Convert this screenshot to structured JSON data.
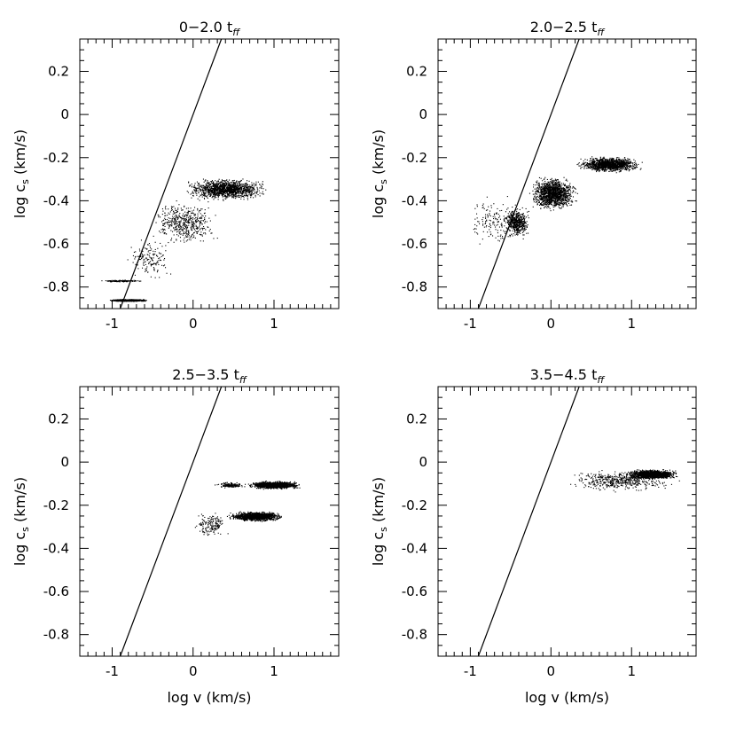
{
  "chart_data": [
    {
      "type": "scatter",
      "title": "0−2.0 t",
      "title_subscript": "ff",
      "xlabel": "",
      "ylabel": "log c",
      "ylabel_subscript": "s",
      "ylabel_unit": " (km/s)",
      "xlim": [
        -1.4,
        1.8
      ],
      "ylim": [
        -0.9,
        0.35
      ],
      "xticks": [
        "-1",
        "0",
        "1"
      ],
      "yticks": [
        "0.2",
        "0",
        "-0.2",
        "-0.4",
        "-0.6",
        "-0.8"
      ],
      "line": {
        "x": [
          -0.9,
          0.35
        ],
        "y": [
          -0.9,
          0.35
        ]
      },
      "clouds": [
        {
          "x": [
            -0.15,
            0.95
          ],
          "y": [
            -0.4,
            -0.29
          ],
          "density": "dense"
        },
        {
          "x": [
            -0.55,
            0.35
          ],
          "y": [
            -0.62,
            -0.38
          ],
          "density": "medium"
        },
        {
          "x": [
            -0.85,
            -0.25
          ],
          "y": [
            -0.78,
            -0.55
          ],
          "density": "sparse"
        },
        {
          "x": [
            -1.05,
            -0.55
          ],
          "y": [
            -0.865,
            -0.855
          ],
          "density": "dense"
        },
        {
          "x": [
            -1.2,
            -0.6
          ],
          "y": [
            -0.775,
            -0.765
          ],
          "density": "sparse"
        }
      ]
    },
    {
      "type": "scatter",
      "title": "2.0−2.5 t",
      "title_subscript": "ff",
      "xlabel": "",
      "ylabel": "log c",
      "ylabel_subscript": "s",
      "ylabel_unit": " (km/s)",
      "xlim": [
        -1.4,
        1.8
      ],
      "ylim": [
        -0.9,
        0.35
      ],
      "xticks": [
        "-1",
        "0",
        "1"
      ],
      "yticks": [
        "0.2",
        "0",
        "-0.2",
        "-0.4",
        "-0.6",
        "-0.8"
      ],
      "line": {
        "x": [
          -0.9,
          0.35
        ],
        "y": [
          -0.9,
          0.35
        ]
      },
      "clouds": [
        {
          "x": [
            0.3,
            1.15
          ],
          "y": [
            -0.27,
            -0.19
          ],
          "density": "dense"
        },
        {
          "x": [
            -0.3,
            0.35
          ],
          "y": [
            -0.45,
            -0.28
          ],
          "density": "dense"
        },
        {
          "x": [
            -0.6,
            -0.25
          ],
          "y": [
            -0.58,
            -0.42
          ],
          "density": "medium"
        },
        {
          "x": [
            -1.1,
            -0.3
          ],
          "y": [
            -0.63,
            -0.36
          ],
          "density": "sparse"
        }
      ]
    },
    {
      "type": "scatter",
      "title": "2.5−3.5 t",
      "title_subscript": "ff",
      "xlabel": "log v (km/s)",
      "ylabel": "log c",
      "ylabel_subscript": "s",
      "ylabel_unit": " (km/s)",
      "xlim": [
        -1.4,
        1.8
      ],
      "ylim": [
        -0.9,
        0.35
      ],
      "xticks": [
        "-1",
        "0",
        "1"
      ],
      "yticks": [
        "0.2",
        "0",
        "-0.2",
        "-0.4",
        "-0.6",
        "-0.8"
      ],
      "line": {
        "x": [
          -0.9,
          0.35
        ],
        "y": [
          -0.9,
          0.35
        ]
      },
      "clouds": [
        {
          "x": [
            0.65,
            1.35
          ],
          "y": [
            -0.125,
            -0.085
          ],
          "density": "dense"
        },
        {
          "x": [
            0.4,
            1.15
          ],
          "y": [
            -0.275,
            -0.225
          ],
          "density": "dense"
        },
        {
          "x": [
            0.25,
            0.65
          ],
          "y": [
            -0.12,
            -0.09
          ],
          "density": "sparse"
        },
        {
          "x": [
            0.0,
            0.45
          ],
          "y": [
            -0.36,
            -0.22
          ],
          "density": "sparse"
        }
      ]
    },
    {
      "type": "scatter",
      "title": "3.5−4.5 t",
      "title_subscript": "ff",
      "xlabel": "log v (km/s)",
      "ylabel": "log c",
      "ylabel_subscript": "s",
      "ylabel_unit": " (km/s)",
      "xlim": [
        -1.4,
        1.8
      ],
      "ylim": [
        -0.9,
        0.35
      ],
      "xticks": [
        "-1",
        "0",
        "1"
      ],
      "yticks": [
        "0.2",
        "0",
        "-0.2",
        "-0.4",
        "-0.6",
        "-0.8"
      ],
      "line": {
        "x": [
          -0.9,
          0.35
        ],
        "y": [
          -0.9,
          0.35
        ]
      },
      "clouds": [
        {
          "x": [
            0.1,
            1.65
          ],
          "y": [
            -0.14,
            -0.03
          ],
          "density": "medium"
        },
        {
          "x": [
            0.9,
            1.6
          ],
          "y": [
            -0.08,
            -0.03
          ],
          "density": "dense"
        }
      ]
    }
  ]
}
